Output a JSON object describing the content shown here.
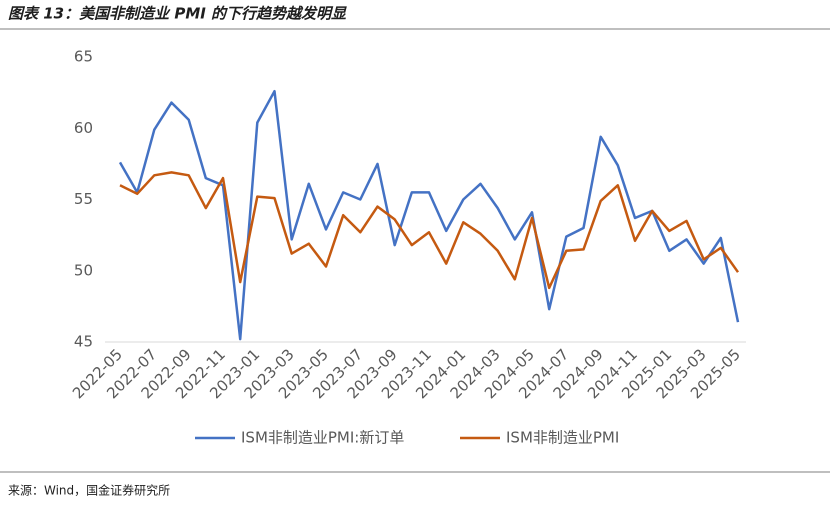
{
  "chart_data": {
    "type": "line",
    "title": "图表 13：美国非制造业 PMI 的下行趋势越发明显",
    "source": "来源：Wind，国金证券研究所",
    "categories": [
      "2022-05",
      null,
      "2022-07",
      null,
      "2022-09",
      null,
      "2022-11",
      null,
      "2023-01",
      null,
      "2023-03",
      null,
      "2023-05",
      null,
      "2023-07",
      null,
      "2023-09",
      null,
      "2023-11",
      null,
      "2024-01",
      null,
      "2024-03",
      null,
      "2024-05",
      null,
      "2024-07",
      null,
      "2024-09",
      null,
      "2024-11",
      null,
      "2025-01",
      null,
      "2025-03",
      null,
      "2025-05"
    ],
    "series": [
      {
        "name": "ISM非制造业PMI:新订单",
        "color": "#4472c4",
        "values": [
          57.6,
          55.5,
          59.9,
          61.8,
          60.6,
          56.5,
          56.0,
          45.2,
          60.4,
          62.6,
          52.2,
          56.1,
          52.9,
          55.5,
          55.0,
          57.5,
          51.8,
          55.5,
          55.5,
          52.8,
          55.0,
          56.1,
          54.4,
          52.2,
          54.1,
          47.3,
          52.4,
          53.0,
          59.4,
          57.4,
          53.7,
          54.2,
          51.4,
          52.2,
          50.5,
          52.3,
          46.4
        ]
      },
      {
        "name": "ISM非制造业PMI",
        "color": "#c55a11",
        "values": [
          56.0,
          55.4,
          56.7,
          56.9,
          56.7,
          54.4,
          56.5,
          49.2,
          55.2,
          55.1,
          51.2,
          51.9,
          50.3,
          53.9,
          52.7,
          54.5,
          53.6,
          51.8,
          52.7,
          50.5,
          53.4,
          52.6,
          51.4,
          49.4,
          53.7,
          48.8,
          51.4,
          51.5,
          54.9,
          56.0,
          52.1,
          54.2,
          52.8,
          53.5,
          50.8,
          51.6,
          49.9
        ]
      }
    ],
    "ylim": [
      45,
      65
    ],
    "yticks": [
      45,
      50,
      55,
      60,
      65
    ],
    "grid": false,
    "legend": "bottom"
  }
}
